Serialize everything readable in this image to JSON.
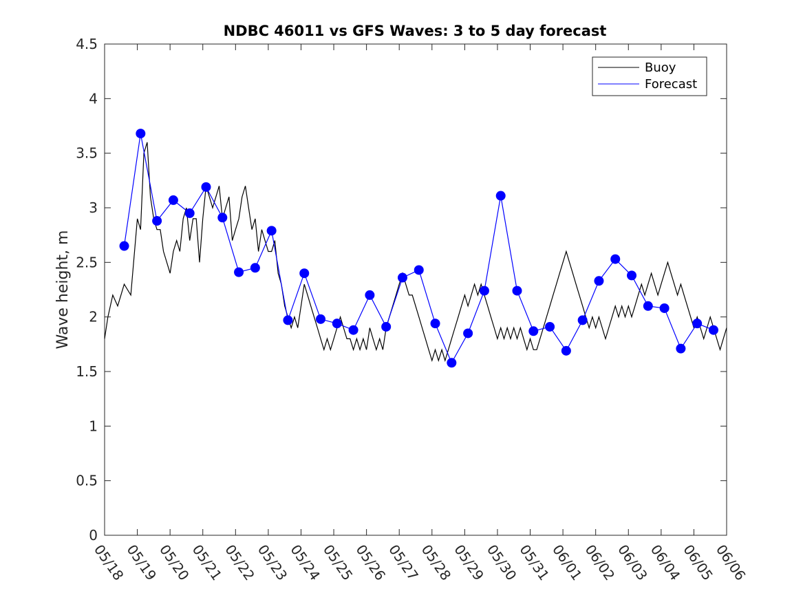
{
  "chart_data": {
    "type": "line",
    "title": "NDBC 46011 vs GFS Waves: 3 to 5 day forecast",
    "xlabel": "",
    "ylabel": "Wave height, m",
    "x_ticks": [
      "05/18",
      "05/19",
      "05/20",
      "05/21",
      "05/22",
      "05/23",
      "05/24",
      "05/25",
      "05/26",
      "05/27",
      "05/28",
      "05/29",
      "05/30",
      "05/31",
      "06/01",
      "06/02",
      "06/03",
      "06/04",
      "06/05",
      "06/06"
    ],
    "y_ticks": [
      "0",
      "0.5",
      "1",
      "1.5",
      "2",
      "2.5",
      "3",
      "3.5",
      "4",
      "4.5"
    ],
    "xlim": [
      0,
      19
    ],
    "ylim": [
      0,
      4.5
    ],
    "x_units": "days since 05/18",
    "grid": false,
    "legend": {
      "position": "top-right",
      "entries": [
        "Buoy",
        "Forecast"
      ]
    },
    "colors": {
      "buoy": "#000000",
      "forecast": "#0000ff"
    },
    "series": [
      {
        "name": "Buoy",
        "color": "#000000",
        "points": [
          [
            0,
            1.8
          ],
          [
            0.1,
            2.0
          ],
          [
            0.25,
            2.2
          ],
          [
            0.4,
            2.1
          ],
          [
            0.5,
            2.2
          ],
          [
            0.6,
            2.3
          ],
          [
            0.8,
            2.2
          ],
          [
            1.0,
            2.9
          ],
          [
            1.1,
            2.8
          ],
          [
            1.2,
            3.5
          ],
          [
            1.3,
            3.6
          ],
          [
            1.4,
            3.1
          ],
          [
            1.5,
            2.9
          ],
          [
            1.6,
            2.8
          ],
          [
            1.7,
            2.8
          ],
          [
            1.8,
            2.6
          ],
          [
            1.9,
            2.5
          ],
          [
            2.0,
            2.4
          ],
          [
            2.1,
            2.6
          ],
          [
            2.2,
            2.7
          ],
          [
            2.3,
            2.6
          ],
          [
            2.4,
            2.9
          ],
          [
            2.5,
            3.0
          ],
          [
            2.6,
            2.7
          ],
          [
            2.7,
            2.9
          ],
          [
            2.8,
            2.9
          ],
          [
            2.9,
            2.5
          ],
          [
            3.0,
            2.9
          ],
          [
            3.1,
            3.2
          ],
          [
            3.2,
            3.1
          ],
          [
            3.3,
            3.0
          ],
          [
            3.4,
            3.1
          ],
          [
            3.5,
            3.2
          ],
          [
            3.6,
            2.9
          ],
          [
            3.7,
            3.0
          ],
          [
            3.8,
            3.1
          ],
          [
            3.9,
            2.7
          ],
          [
            4.0,
            2.8
          ],
          [
            4.1,
            2.9
          ],
          [
            4.2,
            3.1
          ],
          [
            4.3,
            3.2
          ],
          [
            4.4,
            3.0
          ],
          [
            4.5,
            2.8
          ],
          [
            4.6,
            2.9
          ],
          [
            4.7,
            2.6
          ],
          [
            4.8,
            2.8
          ],
          [
            4.9,
            2.7
          ],
          [
            5.0,
            2.6
          ],
          [
            5.1,
            2.6
          ],
          [
            5.2,
            2.7
          ],
          [
            5.3,
            2.4
          ],
          [
            5.4,
            2.3
          ],
          [
            5.5,
            2.1
          ],
          [
            5.6,
            2.0
          ],
          [
            5.7,
            1.9
          ],
          [
            5.8,
            2.0
          ],
          [
            5.9,
            1.9
          ],
          [
            6.0,
            2.1
          ],
          [
            6.1,
            2.3
          ],
          [
            6.2,
            2.2
          ],
          [
            6.3,
            2.1
          ],
          [
            6.4,
            2.0
          ],
          [
            6.5,
            1.9
          ],
          [
            6.6,
            1.8
          ],
          [
            6.7,
            1.7
          ],
          [
            6.8,
            1.8
          ],
          [
            6.9,
            1.7
          ],
          [
            7.0,
            1.8
          ],
          [
            7.1,
            1.9
          ],
          [
            7.2,
            2.0
          ],
          [
            7.3,
            1.9
          ],
          [
            7.4,
            1.8
          ],
          [
            7.5,
            1.8
          ],
          [
            7.6,
            1.7
          ],
          [
            7.7,
            1.8
          ],
          [
            7.8,
            1.7
          ],
          [
            7.9,
            1.8
          ],
          [
            8.0,
            1.7
          ],
          [
            8.1,
            1.9
          ],
          [
            8.2,
            1.8
          ],
          [
            8.3,
            1.7
          ],
          [
            8.4,
            1.8
          ],
          [
            8.5,
            1.7
          ],
          [
            8.6,
            1.9
          ],
          [
            8.7,
            2.0
          ],
          [
            8.8,
            2.1
          ],
          [
            8.9,
            2.2
          ],
          [
            9.0,
            2.3
          ],
          [
            9.1,
            2.4
          ],
          [
            9.2,
            2.3
          ],
          [
            9.3,
            2.2
          ],
          [
            9.4,
            2.2
          ],
          [
            9.5,
            2.1
          ],
          [
            9.6,
            2.0
          ],
          [
            9.7,
            1.9
          ],
          [
            9.8,
            1.8
          ],
          [
            9.9,
            1.7
          ],
          [
            10.0,
            1.6
          ],
          [
            10.1,
            1.7
          ],
          [
            10.2,
            1.6
          ],
          [
            10.3,
            1.7
          ],
          [
            10.4,
            1.6
          ],
          [
            10.5,
            1.7
          ],
          [
            10.6,
            1.8
          ],
          [
            10.7,
            1.9
          ],
          [
            10.8,
            2.0
          ],
          [
            10.9,
            2.1
          ],
          [
            11.0,
            2.2
          ],
          [
            11.1,
            2.1
          ],
          [
            11.2,
            2.2
          ],
          [
            11.3,
            2.3
          ],
          [
            11.4,
            2.2
          ],
          [
            11.5,
            2.3
          ],
          [
            11.6,
            2.2
          ],
          [
            11.7,
            2.1
          ],
          [
            11.8,
            2.0
          ],
          [
            11.9,
            1.9
          ],
          [
            12.0,
            1.8
          ],
          [
            12.1,
            1.9
          ],
          [
            12.2,
            1.8
          ],
          [
            12.3,
            1.9
          ],
          [
            12.4,
            1.8
          ],
          [
            12.5,
            1.9
          ],
          [
            12.6,
            1.8
          ],
          [
            12.7,
            1.9
          ],
          [
            12.8,
            1.8
          ],
          [
            12.9,
            1.7
          ],
          [
            13.0,
            1.8
          ],
          [
            13.1,
            1.7
          ],
          [
            13.2,
            1.7
          ],
          [
            13.3,
            1.8
          ],
          [
            13.4,
            1.9
          ],
          [
            13.5,
            2.0
          ],
          [
            13.6,
            2.1
          ],
          [
            13.7,
            2.2
          ],
          [
            13.8,
            2.3
          ],
          [
            13.9,
            2.4
          ],
          [
            14.0,
            2.5
          ],
          [
            14.1,
            2.6
          ],
          [
            14.2,
            2.5
          ],
          [
            14.3,
            2.4
          ],
          [
            14.4,
            2.3
          ],
          [
            14.5,
            2.2
          ],
          [
            14.6,
            2.1
          ],
          [
            14.7,
            2.0
          ],
          [
            14.8,
            1.9
          ],
          [
            14.9,
            2.0
          ],
          [
            15.0,
            1.9
          ],
          [
            15.1,
            2.0
          ],
          [
            15.2,
            1.9
          ],
          [
            15.3,
            1.8
          ],
          [
            15.4,
            1.9
          ],
          [
            15.5,
            2.0
          ],
          [
            15.6,
            2.1
          ],
          [
            15.7,
            2.0
          ],
          [
            15.8,
            2.1
          ],
          [
            15.9,
            2.0
          ],
          [
            16.0,
            2.1
          ],
          [
            16.1,
            2.0
          ],
          [
            16.2,
            2.1
          ],
          [
            16.3,
            2.2
          ],
          [
            16.4,
            2.3
          ],
          [
            16.5,
            2.2
          ],
          [
            16.6,
            2.3
          ],
          [
            16.7,
            2.4
          ],
          [
            16.8,
            2.3
          ],
          [
            16.9,
            2.2
          ],
          [
            17.0,
            2.3
          ],
          [
            17.1,
            2.4
          ],
          [
            17.2,
            2.5
          ],
          [
            17.3,
            2.4
          ],
          [
            17.4,
            2.3
          ],
          [
            17.5,
            2.2
          ],
          [
            17.6,
            2.3
          ],
          [
            17.7,
            2.2
          ],
          [
            17.8,
            2.1
          ],
          [
            17.9,
            2.0
          ],
          [
            18.0,
            1.9
          ],
          [
            18.1,
            2.0
          ],
          [
            18.2,
            1.9
          ],
          [
            18.3,
            1.8
          ],
          [
            18.4,
            1.9
          ],
          [
            18.5,
            2.0
          ],
          [
            18.6,
            1.9
          ],
          [
            18.7,
            1.8
          ],
          [
            18.8,
            1.7
          ],
          [
            18.9,
            1.8
          ],
          [
            19.0,
            1.9
          ]
        ]
      },
      {
        "name": "Forecast",
        "color": "#0000ff",
        "points": [
          [
            0.6,
            2.65
          ],
          [
            1.1,
            3.68
          ],
          [
            1.6,
            2.88
          ],
          [
            2.1,
            3.07
          ],
          [
            2.6,
            2.95
          ],
          [
            3.1,
            3.19
          ],
          [
            3.6,
            2.91
          ],
          [
            4.1,
            2.41
          ],
          [
            4.6,
            2.45
          ],
          [
            5.1,
            2.79
          ],
          [
            5.6,
            1.97
          ],
          [
            6.1,
            2.4
          ],
          [
            6.6,
            1.98
          ],
          [
            7.1,
            1.94
          ],
          [
            7.6,
            1.88
          ],
          [
            8.1,
            2.2
          ],
          [
            8.6,
            1.91
          ],
          [
            9.1,
            2.36
          ],
          [
            9.6,
            2.43
          ],
          [
            10.1,
            1.94
          ],
          [
            10.6,
            1.58
          ],
          [
            11.1,
            1.85
          ],
          [
            11.6,
            2.24
          ],
          [
            12.1,
            3.11
          ],
          [
            12.6,
            2.24
          ],
          [
            13.1,
            1.87
          ],
          [
            13.6,
            1.91
          ],
          [
            14.1,
            1.69
          ],
          [
            14.6,
            1.97
          ],
          [
            15.1,
            2.33
          ],
          [
            15.6,
            2.53
          ],
          [
            16.1,
            2.38
          ],
          [
            16.6,
            2.1
          ],
          [
            17.1,
            2.08
          ],
          [
            17.6,
            1.71
          ],
          [
            18.1,
            1.94
          ],
          [
            18.6,
            1.88
          ]
        ]
      }
    ]
  }
}
